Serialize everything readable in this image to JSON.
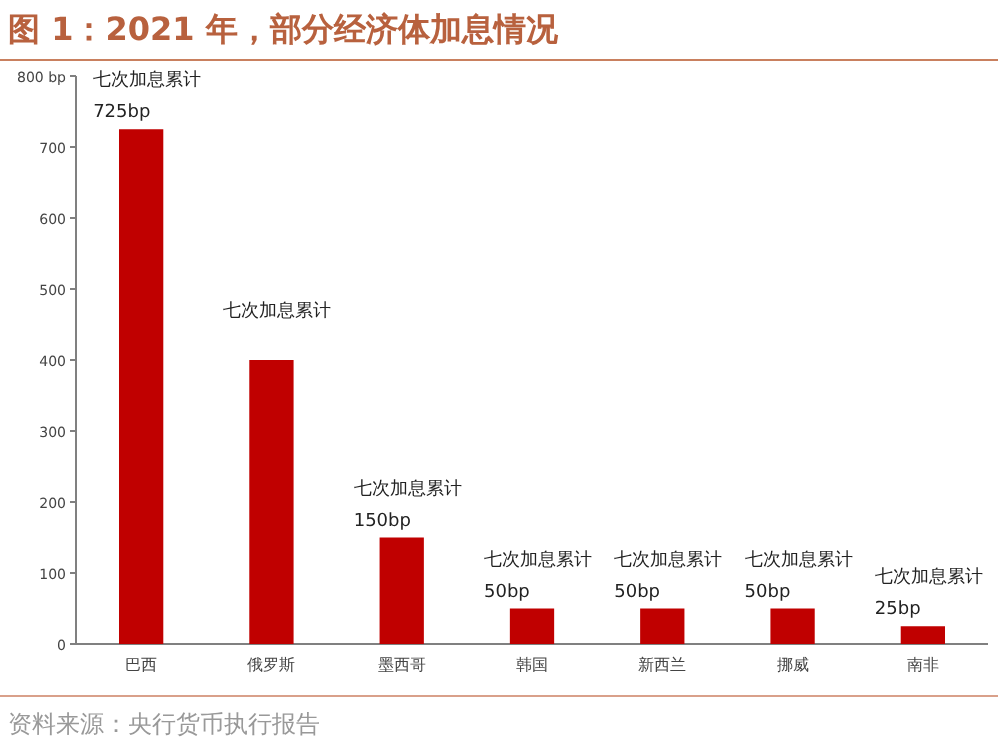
{
  "chart_data": {
    "type": "bar",
    "title": "图 1：2021 年，部分经济体加息情况",
    "categories": [
      "巴西",
      "俄罗斯",
      "墨西哥",
      "韩国",
      "新西兰",
      "挪威",
      "南非"
    ],
    "values": [
      725,
      400,
      150,
      50,
      50,
      50,
      25
    ],
    "color": "#c00000",
    "value_labels": [
      "725bp",
      null,
      "150bp",
      "50bp",
      "50bp",
      "50bp",
      "25bp"
    ],
    "ylim": [
      0,
      800
    ],
    "yticks": [
      0,
      100,
      200,
      300,
      400,
      500,
      600,
      700,
      {
        "value": 800,
        "label": "800 bp"
      }
    ],
    "annotations": [
      {
        "text": "七次加息累计",
        "x": "巴西",
        "y": 725
      },
      {
        "text": "七次加息累计",
        "x": "俄罗斯",
        "y": 400
      },
      {
        "text": "七次加息累计",
        "x": "墨西哥",
        "y": 150
      },
      {
        "text": "七次加息累计",
        "x": "韩国",
        "y": 50
      },
      {
        "text": "七次加息累计",
        "x": "新西兰",
        "y": 50
      },
      {
        "text": "七次加息累计",
        "x": "挪威",
        "y": 50
      },
      {
        "text": "七次加息累计",
        "x": "南非",
        "y": 25
      },
      "资料来源：央行货币执行报告"
    ]
  }
}
